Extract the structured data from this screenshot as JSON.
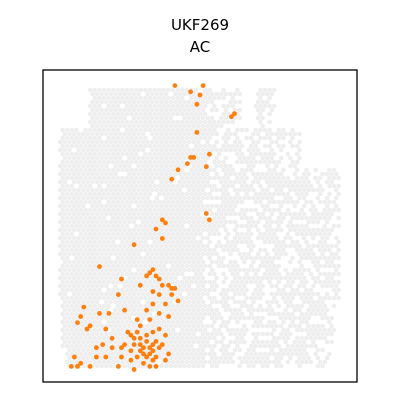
{
  "chart_data": {
    "type": "scatter",
    "title": "UKF269",
    "subtitle": "AC",
    "xlabel": "",
    "ylabel": "",
    "grid": false,
    "axes_ticks": false,
    "colors": {
      "background_spot": "#eeeeee",
      "highlight": "#ff7f0e",
      "frame": "#000000"
    },
    "xlim": [
      0,
      100
    ],
    "ylim": [
      0,
      100
    ],
    "highlight_series": {
      "name": "",
      "points": [
        [
          42,
          95
        ],
        [
          47,
          93
        ],
        [
          50,
          92
        ],
        [
          51,
          95
        ],
        [
          49,
          89
        ],
        [
          60,
          85
        ],
        [
          61,
          86
        ],
        [
          49,
          80
        ],
        [
          53,
          73
        ],
        [
          48,
          72
        ],
        [
          47,
          72
        ],
        [
          46,
          70
        ],
        [
          52,
          69
        ],
        [
          43,
          68
        ],
        [
          41,
          65
        ],
        [
          38,
          52
        ],
        [
          39,
          51
        ],
        [
          36,
          49
        ],
        [
          53,
          52
        ],
        [
          52,
          54
        ],
        [
          38,
          46
        ],
        [
          29,
          44
        ],
        [
          18,
          37
        ],
        [
          34,
          35
        ],
        [
          35,
          36
        ],
        [
          33,
          34
        ],
        [
          36,
          34
        ],
        [
          25,
          33
        ],
        [
          37,
          33
        ],
        [
          38,
          31
        ],
        [
          31,
          31
        ],
        [
          40,
          31
        ],
        [
          41,
          30
        ],
        [
          42,
          30
        ],
        [
          41,
          28
        ],
        [
          35,
          29
        ],
        [
          37,
          28
        ],
        [
          39,
          25
        ],
        [
          43,
          26
        ],
        [
          24,
          28
        ],
        [
          35,
          25
        ],
        [
          33,
          23
        ],
        [
          37,
          22
        ],
        [
          40,
          21
        ],
        [
          26,
          23
        ],
        [
          21,
          22
        ],
        [
          13,
          24
        ],
        [
          18,
          22
        ],
        [
          30,
          20
        ],
        [
          34,
          20
        ],
        [
          12,
          21
        ],
        [
          11,
          19
        ],
        [
          15,
          18
        ],
        [
          14,
          17
        ],
        [
          20,
          17
        ],
        [
          35,
          16
        ],
        [
          28,
          15
        ],
        [
          22,
          14
        ],
        [
          29,
          14
        ],
        [
          31,
          14
        ],
        [
          33,
          13
        ],
        [
          35,
          12
        ],
        [
          36,
          13
        ],
        [
          31,
          12
        ],
        [
          29,
          12
        ],
        [
          26,
          12
        ],
        [
          32,
          11
        ],
        [
          34,
          11
        ],
        [
          17,
          11
        ],
        [
          19,
          12
        ],
        [
          22,
          11
        ],
        [
          25,
          11
        ],
        [
          28,
          10
        ],
        [
          31,
          10
        ],
        [
          32,
          9
        ],
        [
          34,
          9
        ],
        [
          35,
          10
        ],
        [
          37,
          11
        ],
        [
          38,
          12
        ],
        [
          39,
          15
        ],
        [
          33,
          15
        ],
        [
          30,
          16
        ],
        [
          27,
          16
        ],
        [
          30,
          8
        ],
        [
          33,
          8
        ],
        [
          36,
          8
        ],
        [
          35,
          7
        ],
        [
          39,
          7
        ],
        [
          17,
          8
        ],
        [
          20,
          8
        ],
        [
          25,
          8
        ],
        [
          28,
          7
        ],
        [
          32,
          6
        ],
        [
          34,
          5
        ],
        [
          36,
          5
        ],
        [
          10,
          8
        ],
        [
          12,
          6
        ],
        [
          9,
          5
        ],
        [
          11,
          5
        ],
        [
          15,
          5
        ],
        [
          24,
          5
        ],
        [
          29,
          4
        ],
        [
          40,
          9
        ],
        [
          37,
          17
        ],
        [
          31,
          18
        ]
      ]
    }
  }
}
